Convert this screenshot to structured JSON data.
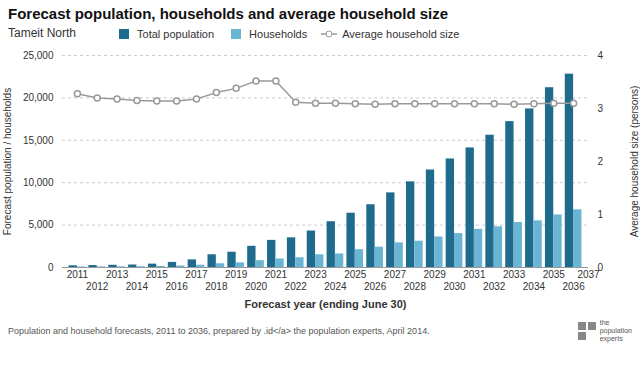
{
  "chart_data": {
    "type": "bar",
    "title": "Forecast population, households and average household size",
    "subtitle": "Tameit North",
    "xlabel": "Forecast year (ending June 30)",
    "ylabel": "Forecast population / households",
    "y2label": "Average household size (persons)",
    "caption": "Population and household forecasts, 2011 to 2036, prepared by .id</a> the population experts, April 2014.",
    "annotations": [
      "2037",
      "the\npopulation\nexperts"
    ],
    "categories": [
      2011,
      2012,
      2013,
      2014,
      2015,
      2016,
      2017,
      2018,
      2019,
      2020,
      2021,
      2022,
      2023,
      2024,
      2025,
      2026,
      2027,
      2028,
      2029,
      2030,
      2031,
      2032,
      2033,
      2034,
      2035,
      2036
    ],
    "series": [
      {
        "name": "Total population",
        "color": "#1f6b8e",
        "values": [
          200,
          230,
          260,
          290,
          400,
          600,
          900,
          1500,
          1800,
          2500,
          3200,
          3500,
          4300,
          5400,
          6400,
          7400,
          8800,
          10100,
          11500,
          12800,
          14100,
          15600,
          17200,
          18700,
          21200,
          22800
        ]
      },
      {
        "name": "Households",
        "color": "#6ab4d4",
        "values": [
          60,
          70,
          80,
          90,
          130,
          180,
          270,
          440,
          550,
          800,
          1000,
          1150,
          1500,
          1600,
          2100,
          2400,
          2900,
          3100,
          3600,
          4000,
          4500,
          4800,
          5300,
          5500,
          6200,
          6800
        ]
      },
      {
        "name": "Average household size",
        "type": "line",
        "axis": "y2",
        "color": "#999999",
        "marker": "circle",
        "values": [
          3.28,
          3.2,
          3.18,
          3.15,
          3.14,
          3.14,
          3.18,
          3.3,
          3.38,
          3.52,
          3.52,
          3.12,
          3.1,
          3.1,
          3.09,
          3.08,
          3.09,
          3.09,
          3.09,
          3.09,
          3.09,
          3.09,
          3.08,
          3.09,
          3.1,
          3.1
        ]
      }
    ],
    "ylim": [
      0,
      25000
    ],
    "yticks": [
      0,
      {
        "value": 5000,
        "label": "5,000"
      },
      {
        "value": 10000,
        "label": "10,000"
      },
      {
        "value": 15000,
        "label": "15,000"
      },
      {
        "value": 20000,
        "label": "20,000"
      },
      {
        "value": 25000,
        "label": "25,000"
      }
    ],
    "y2lim": [
      0,
      4.0
    ],
    "y2ticks": [
      0,
      1,
      2,
      3,
      4
    ],
    "grid": true,
    "legend": "top"
  }
}
